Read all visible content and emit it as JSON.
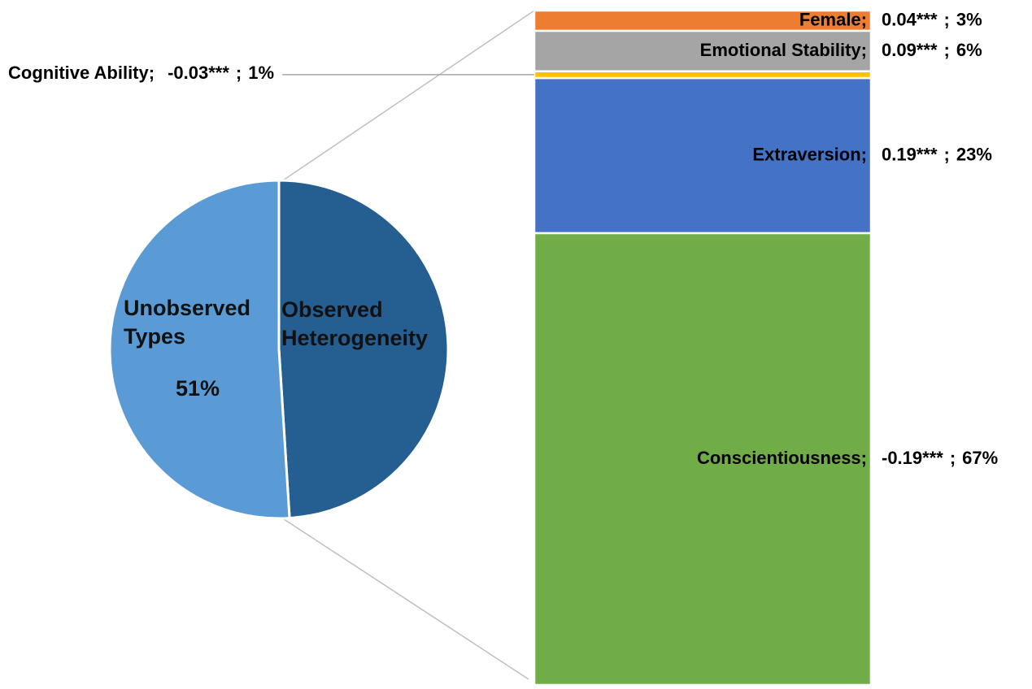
{
  "chart_data": {
    "type": "pie_of_bar",
    "pie": {
      "categories": [
        "Unobserved Types",
        "Observed Heterogeneity"
      ],
      "values": [
        51,
        49
      ],
      "value_labels": [
        "51%",
        null
      ],
      "colors": [
        "#5b9bd5",
        "#255e91"
      ]
    },
    "bar": {
      "categories": [
        "Conscientiousness",
        "Extraversion",
        "Cognitive Ability",
        "Emotional Stability",
        "Female"
      ],
      "values": [
        67,
        23,
        1,
        6,
        3
      ],
      "value_labels": [
        "67%",
        "23%",
        "1%",
        "6%",
        "3%"
      ],
      "coefficients": [
        -0.19,
        0.19,
        -0.03,
        0.09,
        0.04
      ],
      "coefficient_labels": [
        "-0.19***",
        "0.19***",
        "-0.03***",
        "0.09***",
        "0.04***"
      ],
      "label_separator": ";",
      "colors": [
        "#70ad47",
        "#4472c4",
        "#ffc000",
        "#a5a5a5",
        "#ed7d31"
      ]
    }
  }
}
